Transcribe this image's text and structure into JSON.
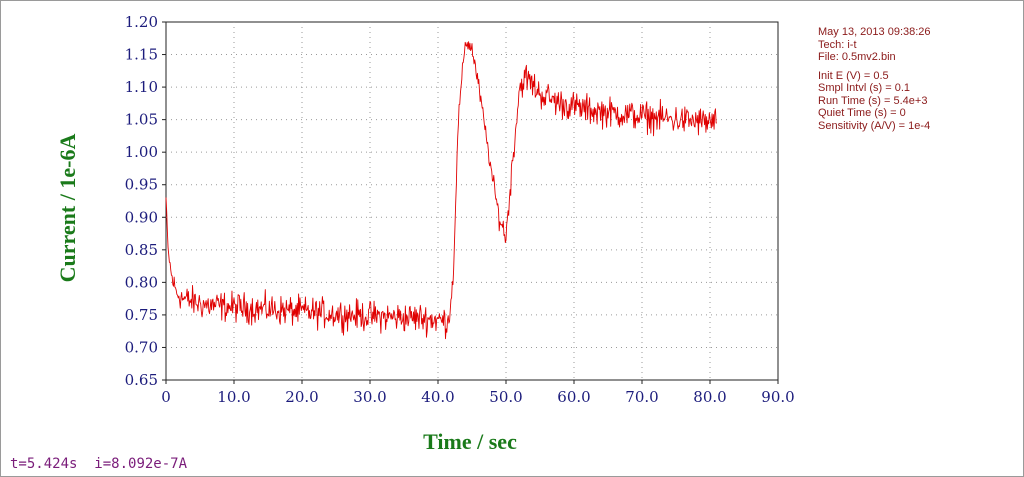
{
  "chart_data": {
    "type": "line",
    "xlabel": "Time / sec",
    "ylabel": "Current / 1e-6A",
    "xlim": [
      0,
      90
    ],
    "ylim": [
      0.65,
      1.2
    ],
    "x_ticks": [
      "0",
      "10.0",
      "20.0",
      "30.0",
      "40.0",
      "50.0",
      "60.0",
      "70.0",
      "80.0",
      "90.0"
    ],
    "y_ticks": [
      "0.65",
      "0.70",
      "0.75",
      "0.80",
      "0.85",
      "0.90",
      "0.95",
      "1.00",
      "1.05",
      "1.10",
      "1.15",
      "1.20"
    ],
    "grid": "dotted",
    "line_color": "#e00000",
    "sample_interval": 0.1,
    "x_end": 81,
    "trace": {
      "x": [
        0,
        0.3,
        0.8,
        1.5,
        2.5,
        4,
        6,
        10,
        20,
        30,
        38,
        41.5,
        42.2,
        43,
        44,
        45,
        46,
        47,
        48,
        49,
        50,
        51,
        52,
        53,
        55,
        58,
        62,
        66,
        70,
        75,
        81
      ],
      "y": [
        0.93,
        0.85,
        0.81,
        0.785,
        0.775,
        0.77,
        0.765,
        0.762,
        0.755,
        0.748,
        0.745,
        0.74,
        0.8,
        1.05,
        1.17,
        1.16,
        1.1,
        1.03,
        0.96,
        0.9,
        0.87,
        0.99,
        1.1,
        1.115,
        1.09,
        1.075,
        1.065,
        1.06,
        1.055,
        1.05,
        1.045
      ],
      "noise_amplitude": [
        0.003,
        0.006,
        0.01,
        0.012,
        0.013,
        0.014,
        0.014,
        0.014,
        0.014,
        0.014,
        0.014,
        0.014,
        0.01,
        0.008,
        0.008,
        0.008,
        0.008,
        0.008,
        0.008,
        0.01,
        0.012,
        0.012,
        0.012,
        0.014,
        0.014,
        0.014,
        0.014,
        0.014,
        0.014,
        0.014,
        0.014
      ]
    }
  },
  "info": {
    "date_time": "May 13, 2013   09:38:26",
    "tech": "Tech: i-t",
    "file": "File: 0.5mv2.bin",
    "init_e": "Init E (V) = 0.5",
    "smpl_intvl": "Smpl Intvl (s) = 0.1",
    "run_time": "Run Time (s) = 5.4e+3",
    "quiet_time": "Quiet Time (s) = 0",
    "sensitivity": "Sensitivity (A/V) = 1e-4"
  },
  "cursor": {
    "t": "t=5.424s",
    "i": "i=8.092e-7A"
  }
}
